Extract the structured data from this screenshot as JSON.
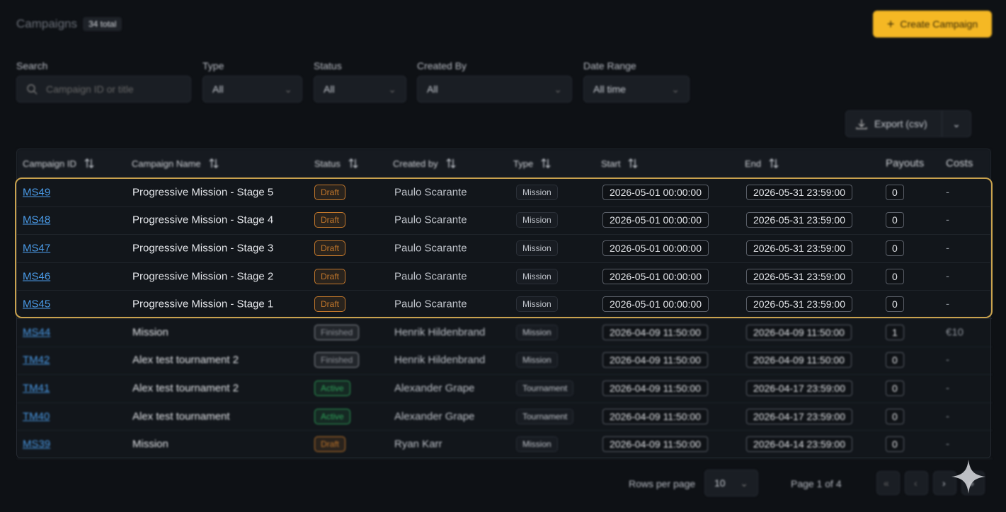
{
  "header": {
    "title": "Campaigns",
    "badge": "34 total",
    "create_button": "Create Campaign"
  },
  "filters": [
    {
      "label": "Search",
      "value": "Campaign ID or title"
    },
    {
      "label": "Type",
      "value": "All"
    },
    {
      "label": "Status",
      "value": "All"
    },
    {
      "label": "Created By",
      "value": "All"
    },
    {
      "label": "Date Range",
      "value": "All time"
    }
  ],
  "export_button": "Export (csv)",
  "table": {
    "columns": [
      "Campaign ID",
      "Campaign Name",
      "Status",
      "Created by",
      "Type",
      "Start",
      "End",
      "Payouts",
      "Costs"
    ],
    "focused_rows": [
      {
        "id": "MS49",
        "name": "Progressive Mission - Stage 5",
        "status": "Draft",
        "status_color": "#c2772b",
        "created_by": "Paulo Scarante",
        "type": "Mission",
        "start": "2026-05-01 00:00:00",
        "end": "2026-05-31 23:59:00",
        "payouts": 0,
        "costs": "-"
      },
      {
        "id": "MS48",
        "name": "Progressive Mission - Stage 4",
        "status": "Draft",
        "status_color": "#c2772b",
        "created_by": "Paulo Scarante",
        "type": "Mission",
        "start": "2026-05-01 00:00:00",
        "end": "2026-05-31 23:59:00",
        "payouts": 0,
        "costs": "-"
      },
      {
        "id": "MS47",
        "name": "Progressive Mission - Stage 3",
        "status": "Draft",
        "status_color": "#c2772b",
        "created_by": "Paulo Scarante",
        "type": "Mission",
        "start": "2026-05-01 00:00:00",
        "end": "2026-05-31 23:59:00",
        "payouts": 0,
        "costs": "-"
      },
      {
        "id": "MS46",
        "name": "Progressive Mission - Stage 2",
        "status": "Draft",
        "status_color": "#c2772b",
        "created_by": "Paulo Scarante",
        "type": "Mission",
        "start": "2026-05-01 00:00:00",
        "end": "2026-05-31 23:59:00",
        "payouts": 0,
        "costs": "-"
      },
      {
        "id": "MS45",
        "name": "Progressive Mission - Stage 1",
        "status": "Draft",
        "status_color": "#c2772b",
        "created_by": "Paulo Scarante",
        "type": "Mission",
        "start": "2026-05-01 00:00:00",
        "end": "2026-05-31 23:59:00",
        "payouts": 0,
        "costs": "-"
      }
    ],
    "other_rows": [
      {
        "id": "MS44",
        "name": "Mission",
        "status": "Finished",
        "status_color": "#8b8f96",
        "created_by": "Henrik Hildenbrand",
        "type": "Mission",
        "start": "2026-04-09 11:50:00",
        "end": "2026-04-09 11:50:00",
        "payouts": 1,
        "costs": "€10"
      },
      {
        "id": "TM42",
        "name": "Alex test tournament 2",
        "status": "Finished",
        "status_color": "#8b8f96",
        "created_by": "Henrik Hildenbrand",
        "type": "Mission",
        "start": "2026-04-09 11:50:00",
        "end": "2026-04-09 11:50:00",
        "payouts": 0,
        "costs": "-"
      },
      {
        "id": "TM41",
        "name": "Alex test tournament 2",
        "status": "Active",
        "status_color": "#2fa35a",
        "created_by": "Alexander Grape",
        "type": "Tournament",
        "start": "2026-04-09 11:50:00",
        "end": "2026-04-17 23:59:00",
        "payouts": 0,
        "costs": "-"
      },
      {
        "id": "TM40",
        "name": "Alex test tournament",
        "status": "Active",
        "status_color": "#2fa35a",
        "created_by": "Alexander Grape",
        "type": "Tournament",
        "start": "2026-04-09 11:50:00",
        "end": "2026-04-17 23:59:00",
        "payouts": 0,
        "costs": "-"
      },
      {
        "id": "MS39",
        "name": "Mission",
        "status": "Draft",
        "status_color": "#c2772b",
        "created_by": "Ryan Karr",
        "type": "Mission",
        "start": "2026-04-09 11:50:00",
        "end": "2026-04-14 23:59:00",
        "payouts": 0,
        "costs": "-"
      }
    ]
  },
  "pagination": {
    "rows_label": "Rows per page",
    "rows_value": "10",
    "page": "Page 1 of 4"
  }
}
